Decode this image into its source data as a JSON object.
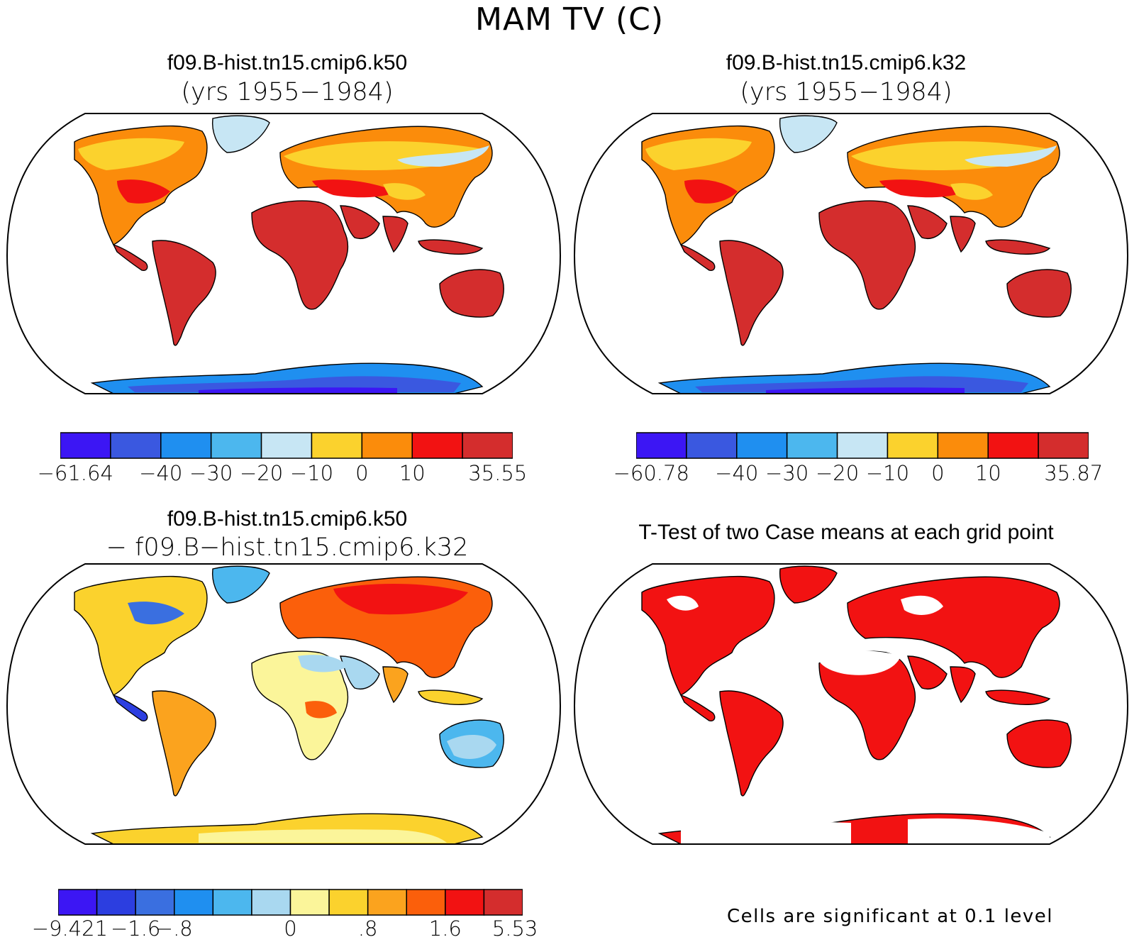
{
  "title": "MAM TV (C)",
  "panels": [
    {
      "id": "k50",
      "title": "f09.B-hist.tn15.cmip6.k50",
      "subtitle": "(yrs 1955−1984)"
    },
    {
      "id": "k32",
      "title": "f09.B-hist.tn15.cmip6.k32",
      "subtitle": "(yrs 1955−1984)"
    },
    {
      "id": "diff",
      "title": "f09.B-hist.tn15.cmip6.k50",
      "subtitle": "− f09.B−hist.tn15.cmip6.k32"
    },
    {
      "id": "ttest",
      "title": "T-Test of two Case means at each grid point",
      "subtitle": ""
    }
  ],
  "colorbars": {
    "abs_colors": [
      "#3c16f4",
      "#3a58e0",
      "#1f8ff0",
      "#4cb7ee",
      "#c7e6f4",
      "#fbd22d",
      "#fb8c0b",
      "#f21212",
      "#d42d2d"
    ],
    "diff_colors": [
      "#3c16f4",
      "#2c3ee0",
      "#3a6fe0",
      "#1f8ff0",
      "#4cb7ee",
      "#a9d8f0",
      "#fbf59a",
      "#fbd22d",
      "#fba31e",
      "#fb5f0b",
      "#f21212",
      "#d42d2d"
    ],
    "k50_labels": [
      "−61.64",
      "−40",
      "−30",
      "−20",
      "−10",
      "0",
      "10",
      "35.55"
    ],
    "k32_labels": [
      "−60.78",
      "−40",
      "−30",
      "−20",
      "−10",
      "0",
      "10",
      "35.87"
    ],
    "diff_labels": [
      "−9.421",
      "−1.6",
      "−.8",
      "0",
      ".8",
      "1.6",
      "5.53"
    ]
  },
  "note": "Cells are significant at 0.1 level",
  "colors": {
    "ttest_significant": "#f21212",
    "land_outline": "#000000"
  }
}
